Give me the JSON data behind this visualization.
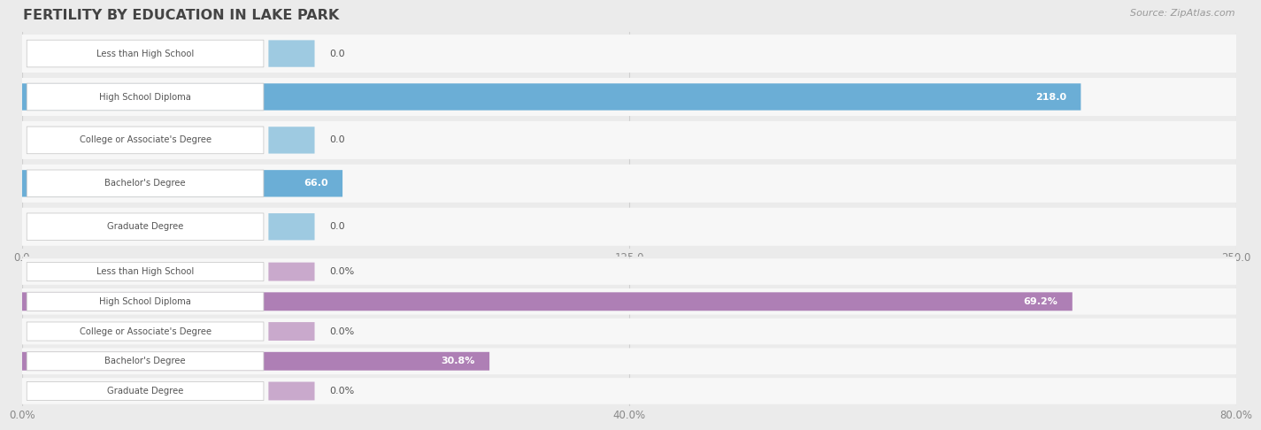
{
  "title": "FERTILITY BY EDUCATION IN LAKE PARK",
  "source": "Source: ZipAtlas.com",
  "top_chart": {
    "categories": [
      "Less than High School",
      "High School Diploma",
      "College or Associate's Degree",
      "Bachelor's Degree",
      "Graduate Degree"
    ],
    "values": [
      0.0,
      218.0,
      0.0,
      66.0,
      0.0
    ],
    "bar_color_main": "#6baed6",
    "bar_color_zero": "#9ecae1",
    "xlim": [
      0,
      250.0
    ],
    "xticks": [
      0.0,
      125.0,
      250.0
    ],
    "is_percent": false
  },
  "bottom_chart": {
    "categories": [
      "Less than High School",
      "High School Diploma",
      "College or Associate's Degree",
      "Bachelor's Degree",
      "Graduate Degree"
    ],
    "values": [
      0.0,
      69.2,
      0.0,
      30.8,
      0.0
    ],
    "bar_color_main": "#ae7fb5",
    "bar_color_zero": "#c9a9cc",
    "xlim": [
      0,
      80.0
    ],
    "xticks": [
      0.0,
      40.0,
      80.0
    ],
    "is_percent": true
  },
  "bg_color": "#ebebeb",
  "row_bg_color": "#f7f7f7",
  "label_box_color": "#ffffff",
  "label_text_color": "#555555",
  "value_color_inside": "#ffffff",
  "value_color_outside": "#555555",
  "tick_color": "#888888",
  "grid_color": "#d0d0d0",
  "title_color": "#444444",
  "source_color": "#999999"
}
